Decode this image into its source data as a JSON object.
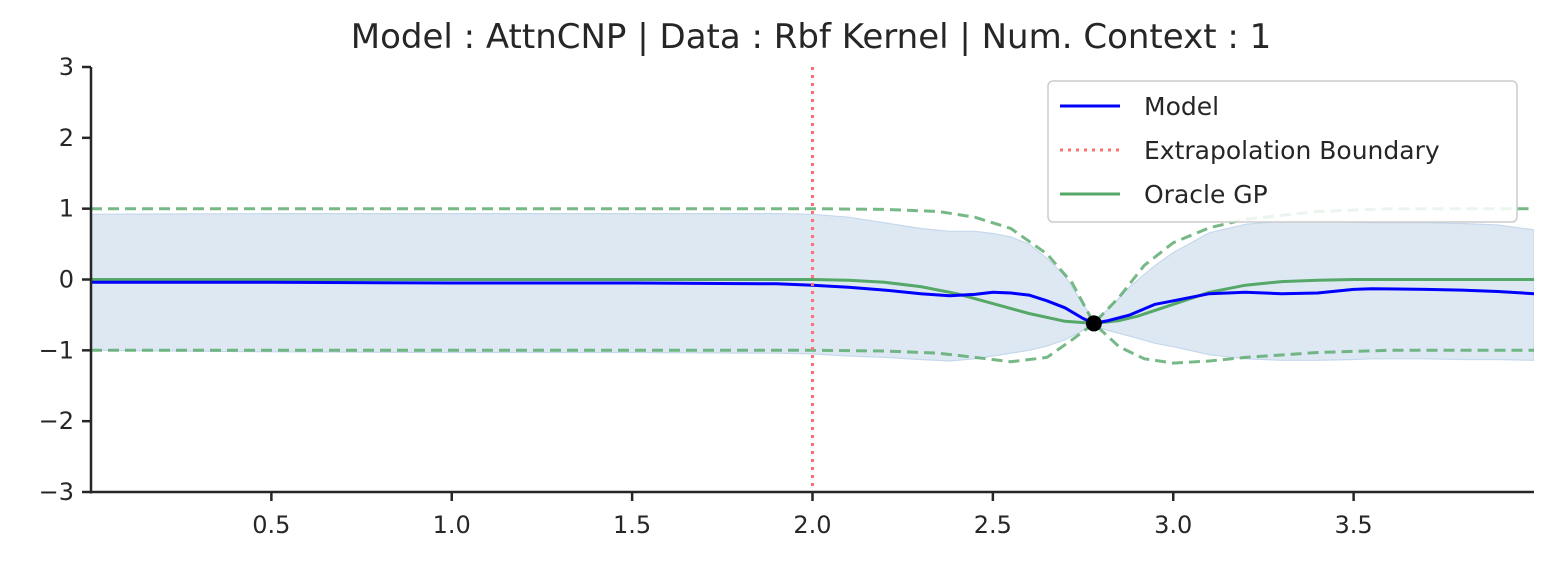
{
  "chart_data": {
    "type": "line",
    "title": "Model : AttnCNP | Data : Rbf Kernel | Num. Context : 1",
    "xlabel": "",
    "ylabel": "",
    "xlim": [
      0.0,
      4.0
    ],
    "ylim": [
      -3,
      3
    ],
    "xticks": [
      0.5,
      1.0,
      1.5,
      2.0,
      2.5,
      3.0,
      3.5
    ],
    "xtick_labels": [
      "0.5",
      "1.0",
      "1.5",
      "2.0",
      "2.5",
      "3.0",
      "3.5"
    ],
    "yticks": [
      3,
      2,
      1,
      0,
      -1,
      -2,
      -3
    ],
    "ytick_labels": [
      "3",
      "2",
      "1",
      "0",
      "−1",
      "−2",
      "−3"
    ],
    "grid": false,
    "legend_position": "top-right",
    "extrapolation_boundary": 2.0,
    "context_points": [
      {
        "x": 2.78,
        "y": -0.62
      }
    ],
    "series": [
      {
        "name": "Model",
        "color": "#0000ff",
        "style": "solid",
        "x": [
          0.0,
          0.5,
          1.0,
          1.5,
          1.9,
          2.0,
          2.1,
          2.2,
          2.3,
          2.38,
          2.45,
          2.5,
          2.55,
          2.6,
          2.65,
          2.7,
          2.75,
          2.78,
          2.82,
          2.88,
          2.95,
          3.0,
          3.1,
          3.2,
          3.3,
          3.4,
          3.5,
          3.55,
          3.7,
          3.8,
          3.9,
          4.0
        ],
        "y": [
          -0.04,
          -0.04,
          -0.05,
          -0.05,
          -0.06,
          -0.08,
          -0.11,
          -0.15,
          -0.2,
          -0.23,
          -0.21,
          -0.18,
          -0.19,
          -0.22,
          -0.3,
          -0.4,
          -0.55,
          -0.62,
          -0.58,
          -0.5,
          -0.35,
          -0.3,
          -0.2,
          -0.18,
          -0.2,
          -0.19,
          -0.14,
          -0.13,
          -0.14,
          -0.15,
          -0.17,
          -0.2
        ]
      },
      {
        "name": "Model std band",
        "color": "#dde8f3",
        "style": "fill",
        "x": [
          0.0,
          0.5,
          1.0,
          1.5,
          1.9,
          2.0,
          2.1,
          2.2,
          2.3,
          2.38,
          2.45,
          2.5,
          2.55,
          2.6,
          2.65,
          2.7,
          2.75,
          2.78,
          2.82,
          2.88,
          2.95,
          3.0,
          3.1,
          3.2,
          3.3,
          3.4,
          3.5,
          3.55,
          3.7,
          3.8,
          3.9,
          4.0
        ],
        "upper": [
          0.92,
          0.93,
          0.93,
          0.93,
          0.93,
          0.92,
          0.88,
          0.8,
          0.72,
          0.68,
          0.68,
          0.65,
          0.6,
          0.5,
          0.3,
          0.05,
          -0.35,
          -0.58,
          -0.42,
          -0.1,
          0.2,
          0.38,
          0.66,
          0.78,
          0.82,
          0.82,
          0.81,
          0.8,
          0.8,
          0.79,
          0.77,
          0.7
        ],
        "lower": [
          -1.0,
          -1.02,
          -1.03,
          -1.03,
          -1.04,
          -1.05,
          -1.08,
          -1.1,
          -1.13,
          -1.15,
          -1.12,
          -1.08,
          -1.04,
          -1.0,
          -0.94,
          -0.85,
          -0.72,
          -0.65,
          -0.72,
          -0.8,
          -0.9,
          -0.95,
          -1.06,
          -1.12,
          -1.14,
          -1.14,
          -1.13,
          -1.12,
          -1.12,
          -1.13,
          -1.13,
          -1.14
        ]
      },
      {
        "name": "Oracle GP",
        "color": "#55a868",
        "style": "solid",
        "x": [
          0.0,
          1.0,
          2.0,
          2.1,
          2.2,
          2.3,
          2.4,
          2.5,
          2.6,
          2.7,
          2.78,
          2.85,
          2.9,
          3.0,
          3.1,
          3.2,
          3.3,
          3.4,
          3.5,
          4.0
        ],
        "y": [
          0.0,
          0.0,
          0.0,
          -0.01,
          -0.04,
          -0.1,
          -0.2,
          -0.34,
          -0.48,
          -0.59,
          -0.62,
          -0.58,
          -0.52,
          -0.35,
          -0.18,
          -0.08,
          -0.03,
          -0.01,
          0.0,
          0.0
        ]
      },
      {
        "name": "Oracle GP upper",
        "color": "#55a868",
        "style": "dashed",
        "x": [
          0.0,
          2.0,
          2.2,
          2.35,
          2.45,
          2.55,
          2.65,
          2.72,
          2.78,
          2.85,
          2.92,
          3.0,
          3.1,
          3.2,
          3.4,
          3.6,
          4.0
        ],
        "y": [
          1.0,
          1.0,
          0.99,
          0.96,
          0.88,
          0.72,
          0.36,
          -0.05,
          -0.62,
          -0.25,
          0.2,
          0.52,
          0.73,
          0.85,
          0.96,
          1.0,
          1.0
        ]
      },
      {
        "name": "Oracle GP lower",
        "color": "#55a868",
        "style": "dashed",
        "x": [
          0.0,
          2.0,
          2.2,
          2.35,
          2.45,
          2.55,
          2.65,
          2.72,
          2.78,
          2.85,
          2.92,
          3.0,
          3.1,
          3.2,
          3.4,
          3.6,
          4.0
        ],
        "y": [
          -1.0,
          -1.0,
          -1.01,
          -1.04,
          -1.1,
          -1.16,
          -1.1,
          -0.85,
          -0.62,
          -0.95,
          -1.12,
          -1.18,
          -1.15,
          -1.1,
          -1.03,
          -1.0,
          -1.0
        ]
      }
    ],
    "legend": [
      {
        "label": "Model",
        "color": "#0000ff",
        "style": "solid"
      },
      {
        "label": "Extrapolation Boundary",
        "color": "#ff7070",
        "style": "dotted"
      },
      {
        "label": "Oracle GP",
        "color": "#55a868",
        "style": "solid"
      }
    ]
  }
}
